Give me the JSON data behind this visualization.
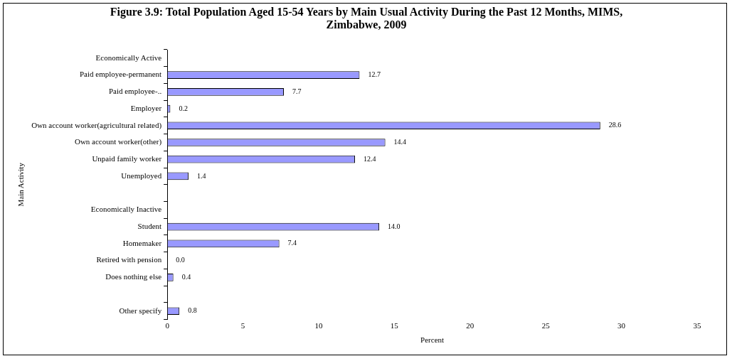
{
  "chart_data": {
    "type": "bar",
    "orientation": "horizontal",
    "title": "Figure 3.9: Total Population Aged 15-54 Years by Main Usual Activity During the Past 12 Months, MIMS, Zimbabwe, 2009",
    "xlabel": "Percent",
    "ylabel": "Main Activity",
    "categories": [
      "Economically Active",
      "Paid employee-permanent",
      "Paid employee-..",
      "Employer",
      "Own account worker(agricultural related)",
      "Own account worker(other)",
      "Unpaid family worker",
      "Unemployed",
      null,
      "Economically Inactive",
      "Student",
      "Homemaker",
      "Retired with pension",
      "Does nothing else",
      null,
      "Other specify"
    ],
    "values": [
      null,
      12.7,
      7.7,
      0.2,
      28.6,
      14.4,
      12.4,
      1.4,
      null,
      null,
      14.0,
      7.4,
      0.0,
      0.4,
      null,
      0.8
    ],
    "value_labels": [
      null,
      "12.7",
      "7.7",
      "0.2",
      "28.6",
      "14.4",
      "12.4",
      "1.4",
      null,
      null,
      "14.0",
      "7.4",
      "0.0",
      "0.4",
      null,
      "0.8"
    ],
    "color": "#9999ff",
    "xlim": [
      0,
      35
    ],
    "xticks": [
      0,
      5,
      10,
      15,
      20,
      25,
      30,
      35
    ],
    "grid": false,
    "legend": false
  }
}
